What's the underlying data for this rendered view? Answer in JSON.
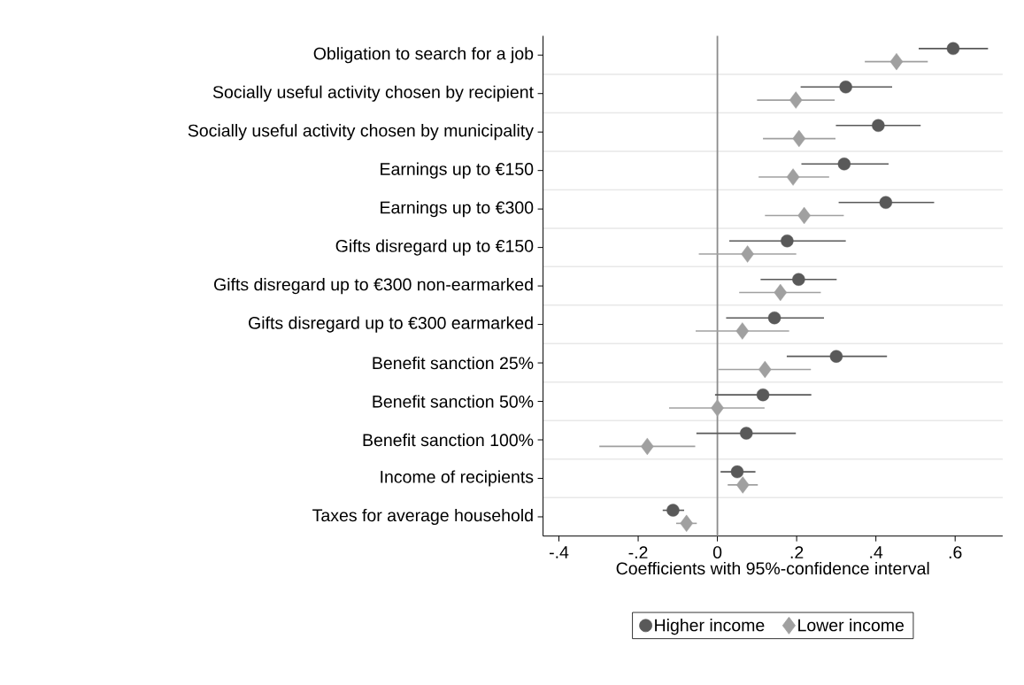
{
  "chart_data": {
    "type": "scatter",
    "orientation": "horizontal",
    "xlabel": "Coefficients with 95%-confidence interval",
    "categories": [
      "Obligation to search for a job",
      "Socially useful activity chosen by recipient",
      "Socially useful activity chosen by municipality",
      "Earnings up to €150",
      "Earnings up to €300",
      "Gifts disregard up to €150",
      "Gifts disregard up to €300 non-earmarked",
      "Gifts disregard up to €300 earmarked",
      "Benefit sanction 25%",
      "Benefit sanction 50%",
      "Benefit sanction 100%",
      "Income of recipients",
      "Taxes for average household"
    ],
    "series": [
      {
        "name": "Higher income",
        "color": "#595959",
        "marker": "circle",
        "values": [
          0.595,
          0.324,
          0.406,
          0.32,
          0.425,
          0.176,
          0.205,
          0.144,
          0.3,
          0.115,
          0.073,
          0.05,
          -0.112
        ],
        "errors": [
          [
            0.508,
            0.683
          ],
          [
            0.21,
            0.441
          ],
          [
            0.299,
            0.513
          ],
          [
            0.212,
            0.432
          ],
          [
            0.306,
            0.547
          ],
          [
            0.03,
            0.324
          ],
          [
            0.109,
            0.301
          ],
          [
            0.022,
            0.269
          ],
          [
            0.175,
            0.428
          ],
          [
            -0.006,
            0.237
          ],
          [
            -0.053,
            0.198
          ],
          [
            0.008,
            0.096
          ],
          [
            -0.138,
            -0.084
          ]
        ]
      },
      {
        "name": "Lower income",
        "color": "#a0a0a0",
        "marker": "diamond",
        "values": [
          0.452,
          0.198,
          0.206,
          0.191,
          0.219,
          0.076,
          0.159,
          0.063,
          0.12,
          0.0,
          -0.177,
          0.064,
          -0.078
        ],
        "errors": [
          [
            0.372,
            0.531
          ],
          [
            0.1,
            0.296
          ],
          [
            0.115,
            0.298
          ],
          [
            0.104,
            0.282
          ],
          [
            0.12,
            0.319
          ],
          [
            -0.047,
            0.199
          ],
          [
            0.055,
            0.261
          ],
          [
            -0.055,
            0.181
          ],
          [
            0.002,
            0.236
          ],
          [
            -0.122,
            0.119
          ],
          [
            -0.298,
            -0.056
          ],
          [
            0.026,
            0.102
          ],
          [
            -0.104,
            -0.052
          ]
        ]
      }
    ],
    "xlim": [
      -0.44,
      0.72
    ],
    "xticks": [
      {
        "value": -0.4,
        "label": "-.4"
      },
      {
        "value": -0.2,
        "label": "-.2"
      },
      0,
      {
        "value": 0.2,
        "label": ".2"
      },
      {
        "value": 0.4,
        "label": ".4"
      },
      {
        "value": 0.6,
        "label": ".6"
      }
    ],
    "ref_lines": [
      {
        "axis": "x",
        "value": 0,
        "color": "#8c8c8c"
      }
    ],
    "grid": "y",
    "legend": "bottom"
  }
}
